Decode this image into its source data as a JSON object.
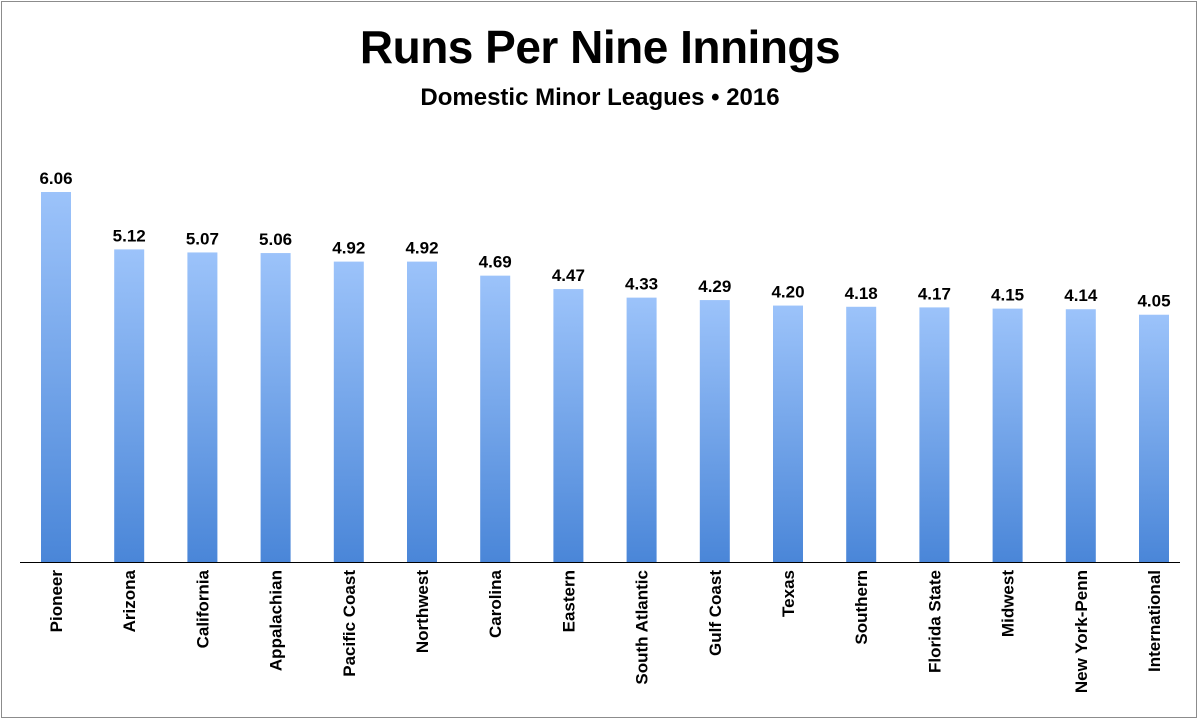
{
  "chart_data": {
    "type": "bar",
    "title": "Runs Per Nine Innings",
    "subtitle": "Domestic Minor Leagues • 2016",
    "categories": [
      "Pioneer",
      "Arizona",
      "California",
      "Appalachian",
      "Pacific Coast",
      "Northwest",
      "Carolina",
      "Eastern",
      "South Atlantic",
      "Gulf Coast",
      "Texas",
      "Southern",
      "Florida State",
      "Midwest",
      "New York-Penn",
      "International"
    ],
    "values": [
      6.06,
      5.12,
      5.07,
      5.06,
      4.92,
      4.92,
      4.69,
      4.47,
      4.33,
      4.29,
      4.2,
      4.18,
      4.17,
      4.15,
      4.14,
      4.05
    ],
    "value_labels": [
      "6.06",
      "5.12",
      "5.07",
      "5.06",
      "4.92",
      "4.92",
      "4.69",
      "4.47",
      "4.33",
      "4.29",
      "4.20",
      "4.18",
      "4.17",
      "4.15",
      "4.14",
      "4.05"
    ],
    "ylim": [
      0,
      6.06
    ],
    "grid": false,
    "legend": "none",
    "bar_color_top": "#9cc3fa",
    "bar_color_bottom": "#4a86d8",
    "xlabel": "",
    "ylabel": ""
  }
}
